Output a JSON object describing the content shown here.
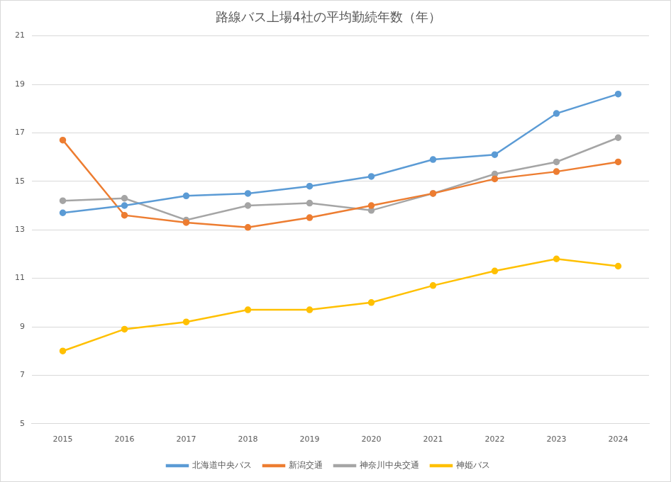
{
  "chart_data": {
    "type": "line",
    "title": "路線バス上場4社の平均勤続年数（年）",
    "categories": [
      "2015",
      "2016",
      "2017",
      "2018",
      "2019",
      "2020",
      "2021",
      "2022",
      "2023",
      "2024"
    ],
    "series": [
      {
        "name": "北海道中央バス",
        "color": "#5b9bd5",
        "values": [
          13.7,
          14.0,
          14.4,
          14.5,
          14.8,
          15.2,
          15.9,
          16.1,
          17.8,
          18.6
        ]
      },
      {
        "name": "新潟交通",
        "color": "#ed7d31",
        "values": [
          16.7,
          13.6,
          13.3,
          13.1,
          13.5,
          14.0,
          14.5,
          15.1,
          15.4,
          15.8
        ]
      },
      {
        "name": "神奈川中央交通",
        "color": "#a5a5a5",
        "values": [
          14.2,
          14.3,
          13.4,
          14.0,
          14.1,
          13.8,
          14.5,
          15.3,
          15.8,
          16.8
        ]
      },
      {
        "name": "神姫バス",
        "color": "#ffc000",
        "values": [
          8.0,
          8.9,
          9.2,
          9.7,
          9.7,
          10.0,
          10.7,
          11.3,
          11.8,
          11.5
        ]
      }
    ],
    "ylim": [
      5,
      21
    ],
    "yticks": [
      5,
      7,
      9,
      11,
      13,
      15,
      17,
      19,
      21
    ],
    "grid": true,
    "legend": "bottom",
    "marker": "circle",
    "line_style": "solid"
  }
}
